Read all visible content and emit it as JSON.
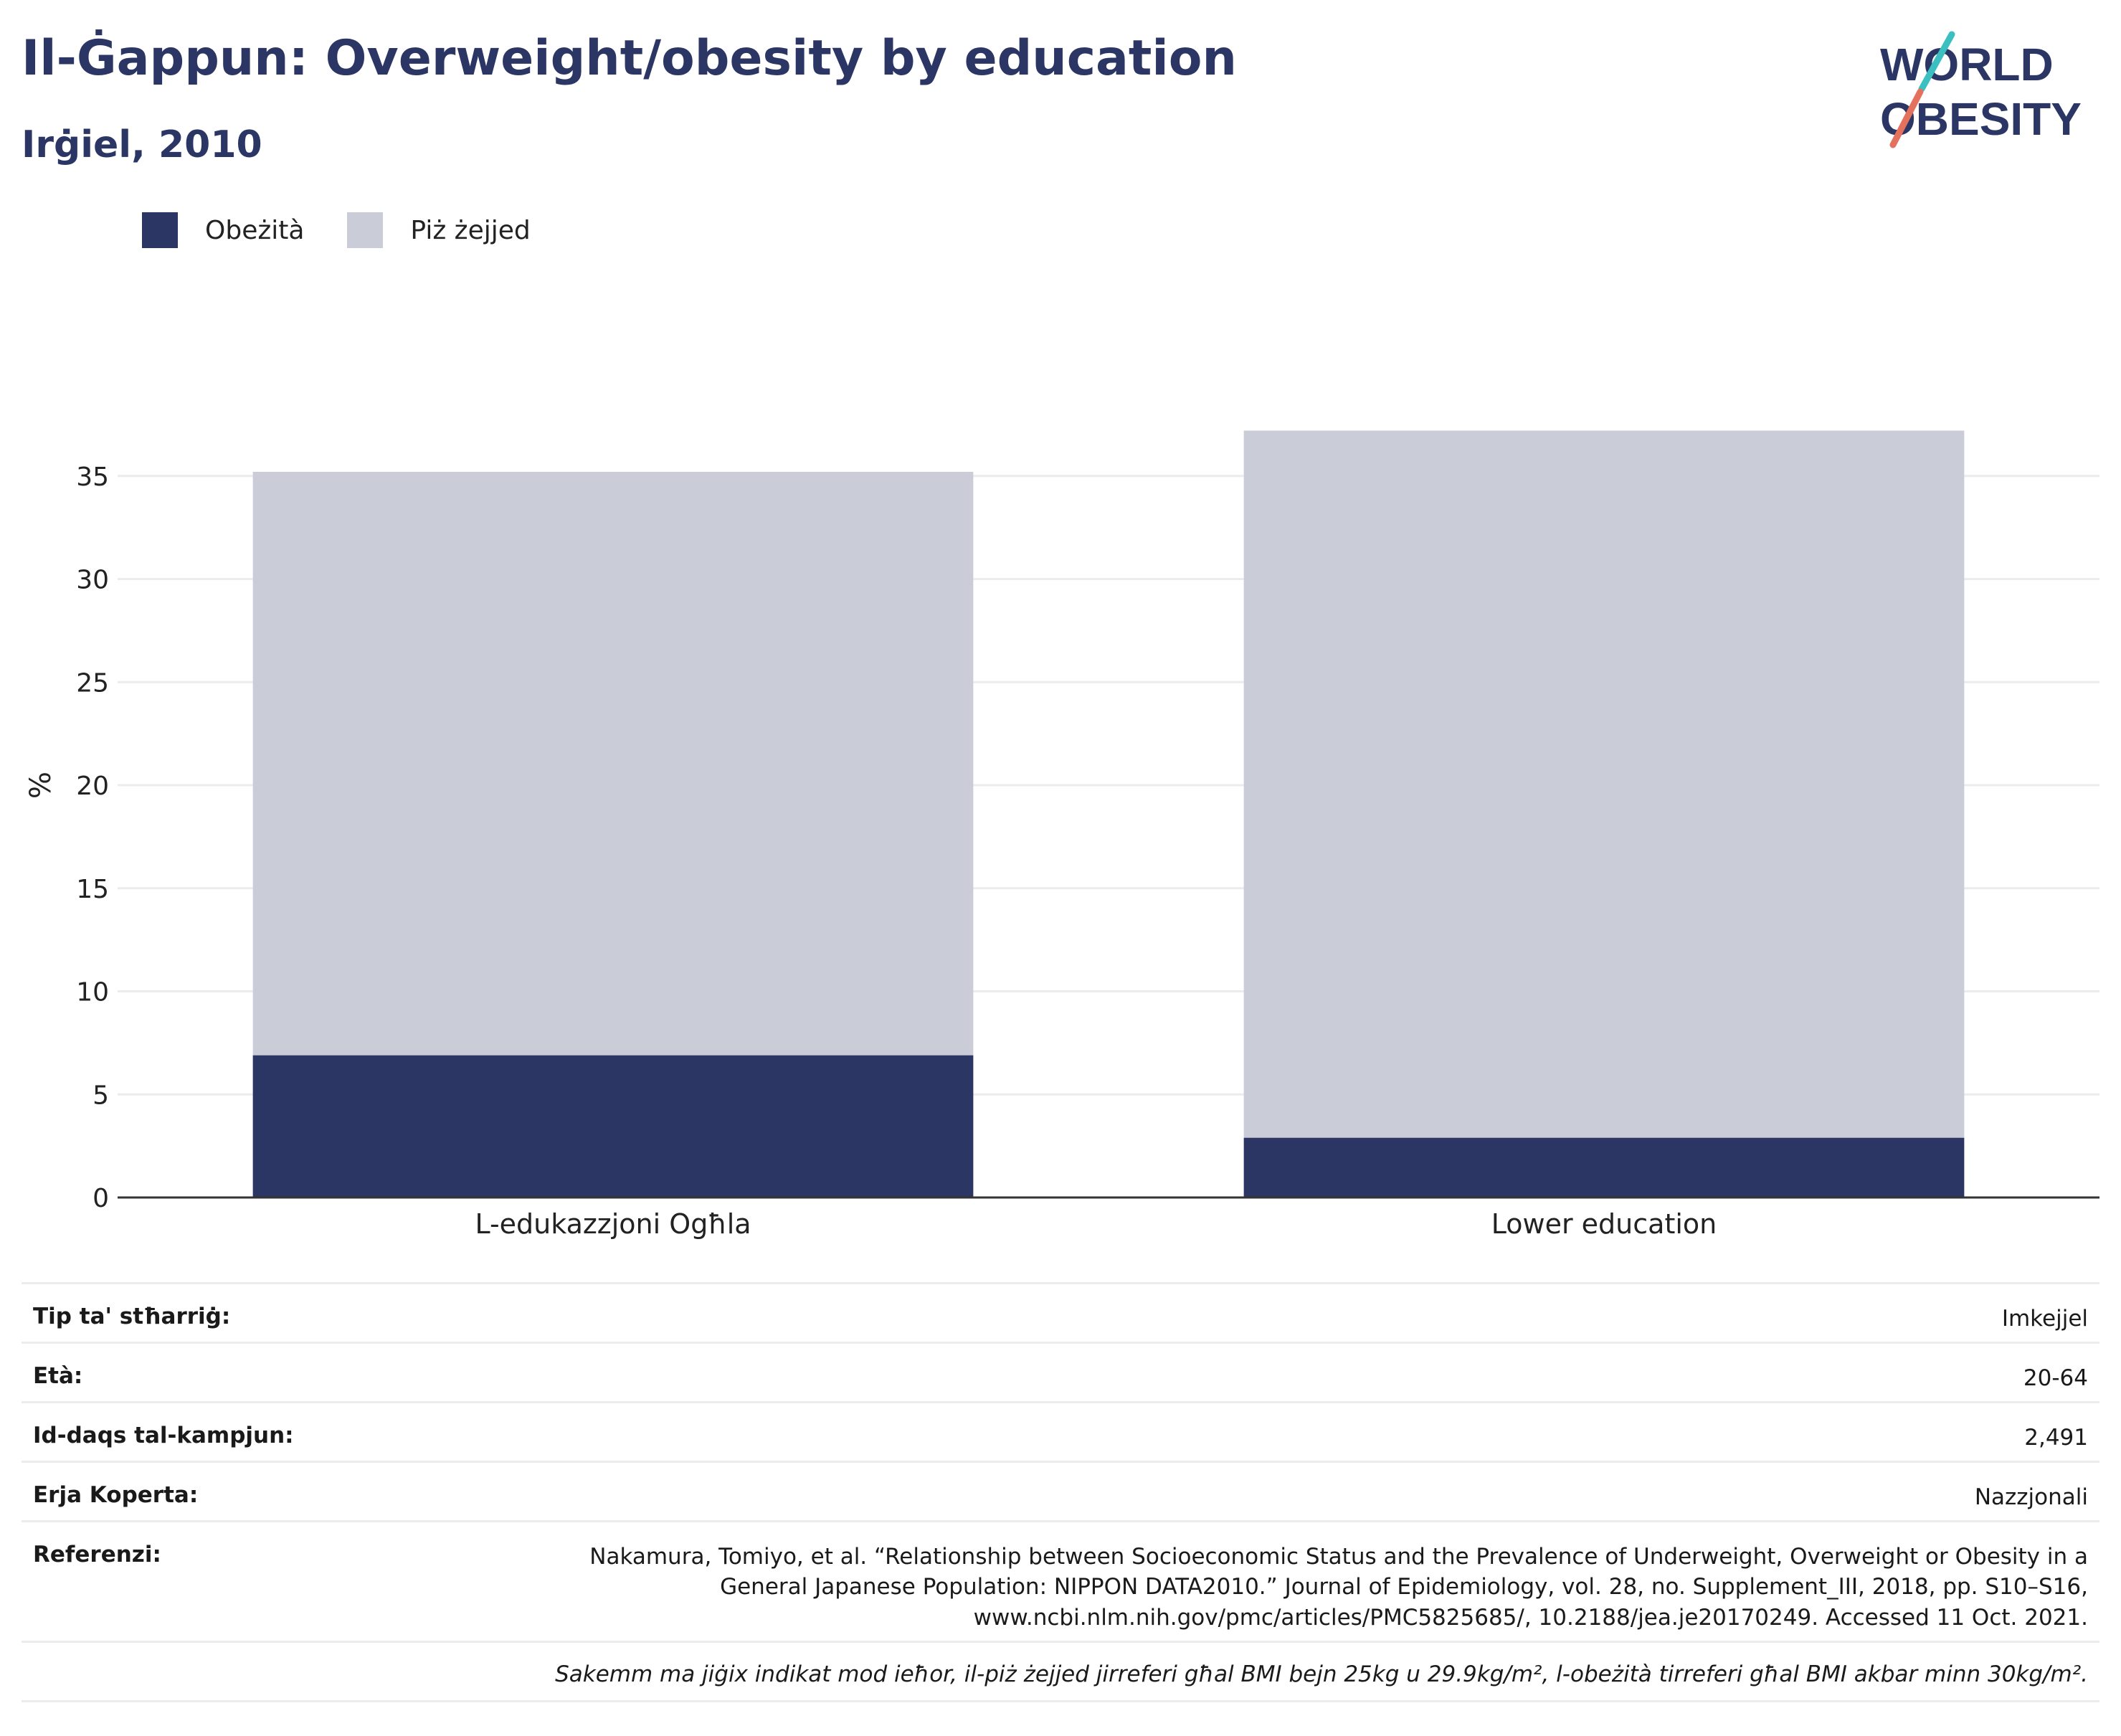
{
  "header": {
    "title": "Il-Ġappun: Overweight/obesity by education",
    "subtitle": "Irġiel, 2010"
  },
  "logo": {
    "line1": "WORLD",
    "line2": "OBESITY"
  },
  "colors": {
    "obesity": "#2b3665",
    "overweight": "#cacdd8",
    "accent_teal": "#3bbfc0",
    "accent_red": "#e4715d",
    "grid": "#ececec",
    "axis": "#333333"
  },
  "chart_data": {
    "type": "bar",
    "stacked": true,
    "categories": [
      "L-edukazzjoni Ogħla",
      "Lower education"
    ],
    "series": [
      {
        "name": "Obeżità",
        "values": [
          6.9,
          2.9
        ]
      },
      {
        "name": "Piż żejjed",
        "values": [
          28.3,
          34.3
        ]
      }
    ],
    "ylabel": "%",
    "ylim": [
      0,
      40
    ],
    "yticks": [
      0,
      5,
      10,
      15,
      20,
      25,
      30,
      35
    ],
    "grid": true,
    "legend": "top-left"
  },
  "meta": {
    "rows": [
      {
        "label": "Tip ta' stħarriġ:",
        "value": "Imkejjel"
      },
      {
        "label": "Età:",
        "value": "20-64"
      },
      {
        "label": "Id-daqs tal-kampjun:",
        "value": "2,491"
      },
      {
        "label": "Erja Koperta:",
        "value": "Nazzjonali"
      }
    ],
    "reference_label": "Referenzi:",
    "reference_lines": [
      "Nakamura, Tomiyo, et al. “Relationship between Socioeconomic Status and the Prevalence of Underweight, Overweight or Obesity in a",
      "General Japanese Population: NIPPON DATA2010.” Journal of Epidemiology, vol. 28, no. Supplement_III, 2018, pp. S10–S16,",
      "www.ncbi.nlm.nih.gov/pmc/articles/PMC5825685/, 10.2188/jea.je20170249. Accessed 11 Oct. 2021."
    ],
    "note": "Sakemm ma jiġix indikat mod ieħor, il-piż żejjed jirreferi għal BMI bejn 25kg u 29.9kg/m², l-obeżità tirreferi għal BMI akbar minn 30kg/m²."
  }
}
